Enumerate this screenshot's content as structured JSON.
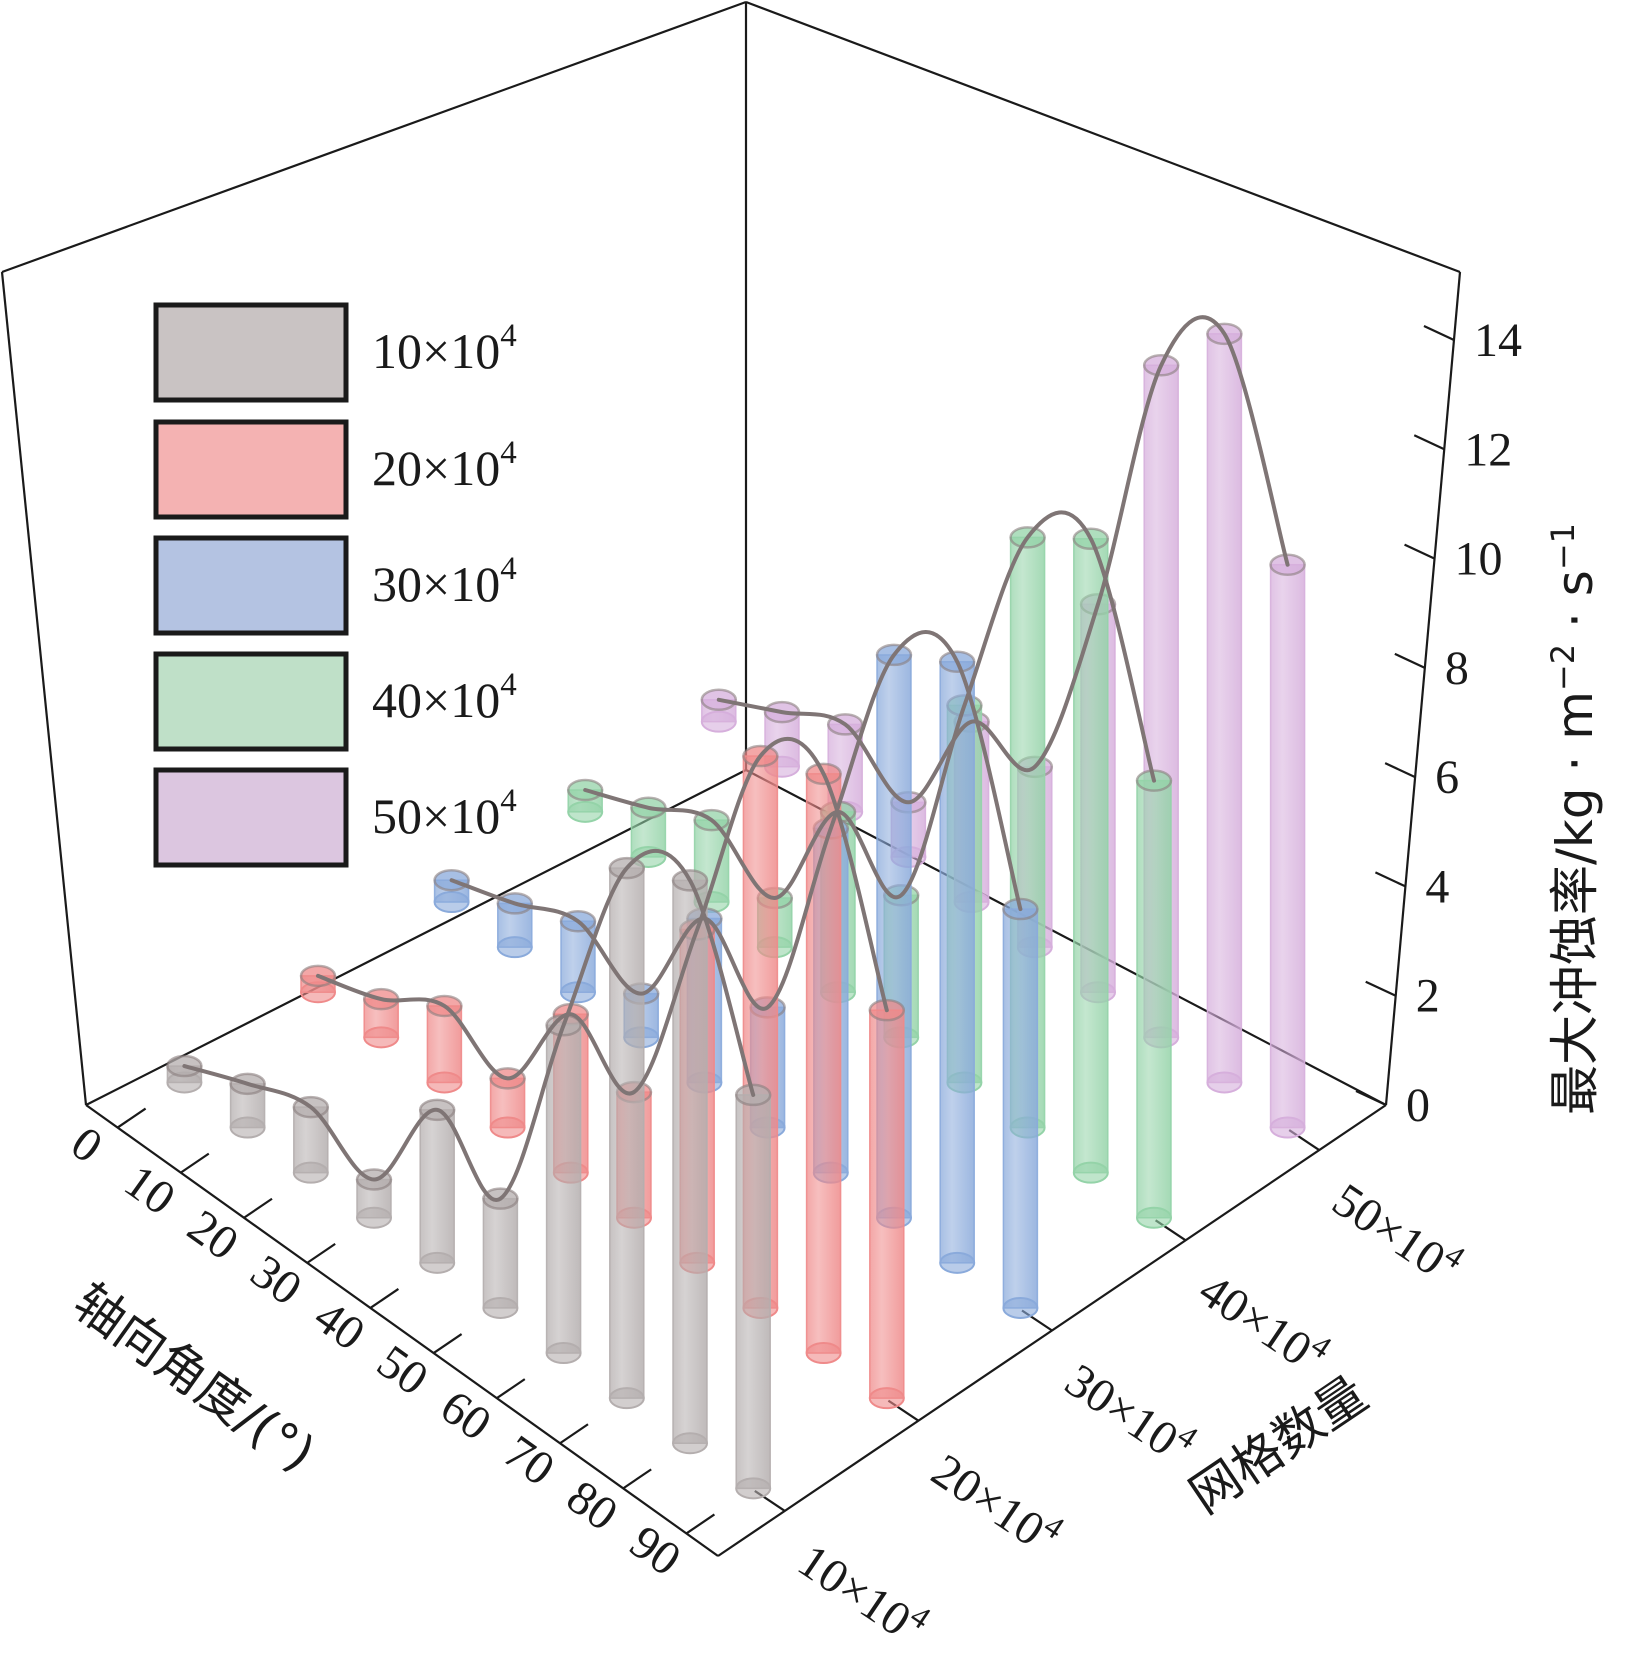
{
  "chart_data": {
    "type": "bar",
    "style": "3d-cylinders",
    "x_axis": {
      "title": "轴向角度/(°)",
      "categories": [
        "0",
        "10",
        "20",
        "30",
        "40",
        "50",
        "60",
        "70",
        "80",
        "90"
      ]
    },
    "y_axis": {
      "title": "网格数量",
      "categories": [
        "10×10⁴",
        "20×10⁴",
        "30×10⁴",
        "40×10⁴",
        "50×10⁴"
      ]
    },
    "z_axis": {
      "title": "最大冲蚀率/kg·m⁻²·s⁻¹",
      "range": [
        0,
        14
      ],
      "ticks": [
        "0",
        "2",
        "4",
        "6",
        "8",
        "10",
        "12",
        "14"
      ]
    },
    "legend_placement": "top-left",
    "series": [
      {
        "name": "10×10⁴",
        "color": "#b4aeae",
        "values": [
          0.3,
          0.8,
          1.2,
          0.7,
          2.8,
          2.0,
          6.0,
          9.7,
          10.3,
          7.2
        ]
      },
      {
        "name": "20×10⁴",
        "color": "#ef8a8a",
        "values": [
          0.3,
          0.7,
          1.4,
          0.9,
          2.9,
          2.3,
          6.1,
          10.1,
          10.6,
          7.1
        ]
      },
      {
        "name": "30×10⁴",
        "color": "#8aaadb",
        "values": [
          0.4,
          0.8,
          1.3,
          0.8,
          3.0,
          2.2,
          6.3,
          10.3,
          11.0,
          7.3
        ]
      },
      {
        "name": "40×10⁴",
        "color": "#94d3a8",
        "values": [
          0.4,
          0.9,
          1.5,
          0.9,
          3.3,
          2.6,
          6.9,
          10.8,
          11.6,
          8.0
        ]
      },
      {
        "name": "50×10⁴",
        "color": "#d6afdc",
        "values": [
          0.4,
          1.0,
          1.6,
          1.0,
          3.3,
          3.3,
          7.1,
          12.3,
          13.7,
          10.3
        ]
      }
    ]
  },
  "legend": {
    "items": [
      {
        "label": "10×10",
        "sup": "4",
        "color": "#c9c3c3"
      },
      {
        "label": "20×10",
        "sup": "4",
        "color": "#f4b2b2"
      },
      {
        "label": "30×10",
        "sup": "4",
        "color": "#b4c3e2"
      },
      {
        "label": "40×10",
        "sup": "4",
        "color": "#bfe0c8"
      },
      {
        "label": "50×10",
        "sup": "4",
        "color": "#dcc6e0"
      }
    ]
  },
  "labels": {
    "x_title": "轴向角度/(°)",
    "y_title": "网格数量",
    "z_title_main": "最大冲蚀率/kg · m",
    "z_title_sup1": "−2",
    "z_title_mid": " · s",
    "z_title_sup2": "−1",
    "y_tick_base": [
      "10×10",
      "20×10",
      "30×10",
      "40×10",
      "50×10"
    ],
    "y_tick_sup": "4"
  }
}
